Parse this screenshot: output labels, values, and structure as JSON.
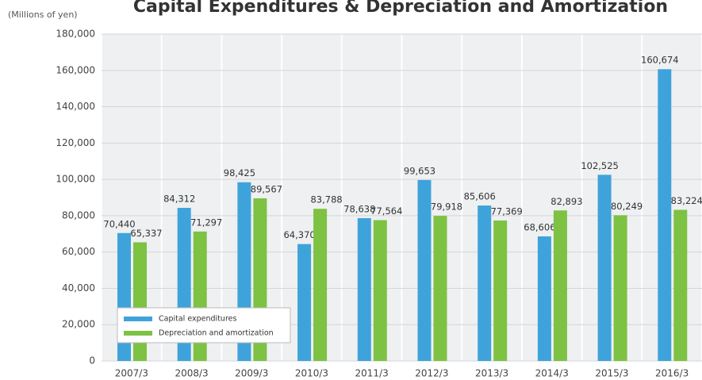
{
  "chart_data": {
    "type": "bar",
    "title": "Capital Expenditures & Depreciation and Amortization",
    "y_label": "(Millions of yen)",
    "categories": [
      "2007/3",
      "2008/3",
      "2009/3",
      "2010/3",
      "2011/3",
      "2012/3",
      "2013/3",
      "2014/3",
      "2015/3",
      "2016/3"
    ],
    "series": [
      {
        "name": "Capital expenditures",
        "color": "#3fa3db",
        "values": [
          70440,
          84312,
          98425,
          64370,
          78638,
          99653,
          85606,
          68606,
          102525,
          160674
        ],
        "value_labels": [
          "70,440",
          "84,312",
          "98,425",
          "64,370",
          "78,638",
          "99,653",
          "85,606",
          "68,606",
          "102,525",
          "160,674"
        ]
      },
      {
        "name": "Depreciation and amortization",
        "color": "#7dc242",
        "values": [
          65337,
          71297,
          89567,
          83788,
          77564,
          79918,
          77369,
          82893,
          80249,
          83224
        ],
        "value_labels": [
          "65,337",
          "71,297",
          "89,567",
          "83,788",
          "77,564",
          "79,918",
          "77,369",
          "82,893",
          "80,249",
          "83,224"
        ]
      }
    ],
    "ylim": [
      0,
      180000
    ],
    "yticks": [
      0,
      {
        "value": 20000,
        "label": "20,000"
      },
      {
        "value": 40000,
        "label": "40,000"
      },
      {
        "value": 60000,
        "label": "60,000"
      },
      {
        "value": 80000,
        "label": "80,000"
      },
      {
        "value": 100000,
        "label": "100,000"
      },
      {
        "value": 120000,
        "label": "120,000"
      },
      {
        "value": 140000,
        "label": "140,000"
      },
      {
        "value": 160000,
        "label": "160,000"
      },
      {
        "value": 180000,
        "label": "180,000"
      }
    ],
    "legend": "lower left"
  }
}
